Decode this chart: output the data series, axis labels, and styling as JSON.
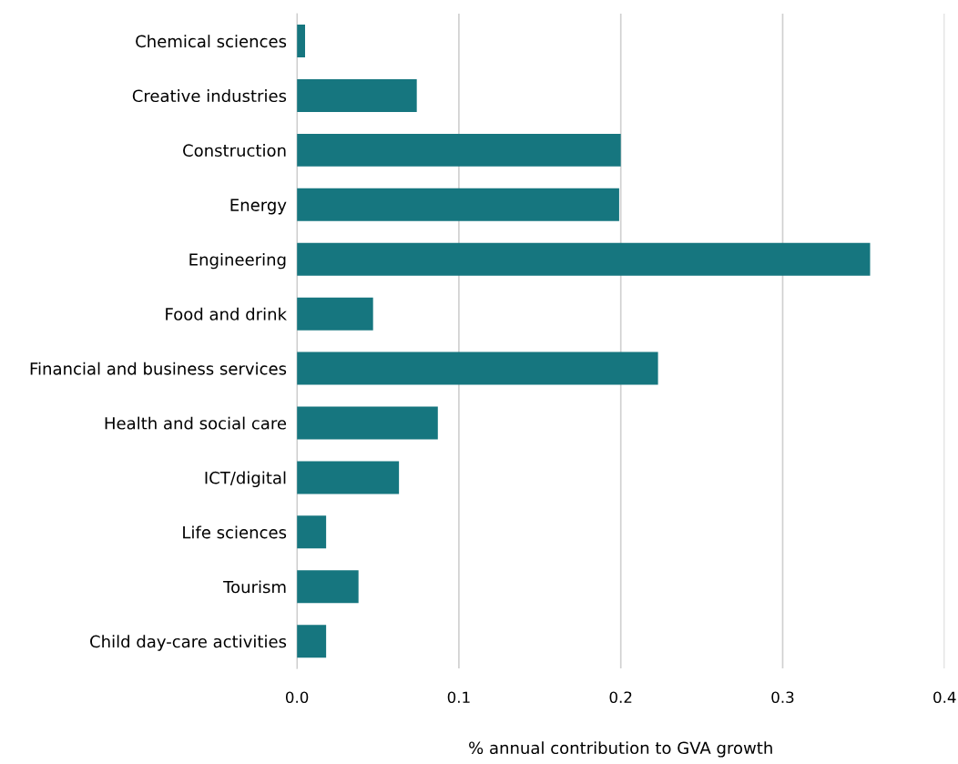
{
  "chart_data": {
    "type": "bar",
    "orientation": "horizontal",
    "categories": [
      "Chemical sciences",
      "Creative industries",
      "Construction",
      "Energy",
      "Engineering",
      "Food and drink",
      "Financial and business services",
      "Health and social care",
      "ICT/digital",
      "Life sciences",
      "Tourism",
      "Child day-care activities"
    ],
    "values": [
      0.005,
      0.074,
      0.2,
      0.199,
      0.354,
      0.047,
      0.223,
      0.087,
      0.063,
      0.018,
      0.038,
      0.018
    ],
    "color": "#16767f",
    "xlabel": "% annual contribution to GVA growth",
    "xlim": [
      0,
      0.4
    ],
    "xticks": [
      {
        "value": 0,
        "label": "0.0"
      },
      0.1,
      0.2,
      0.3,
      0.4
    ],
    "grid": "x",
    "legend": false
  }
}
